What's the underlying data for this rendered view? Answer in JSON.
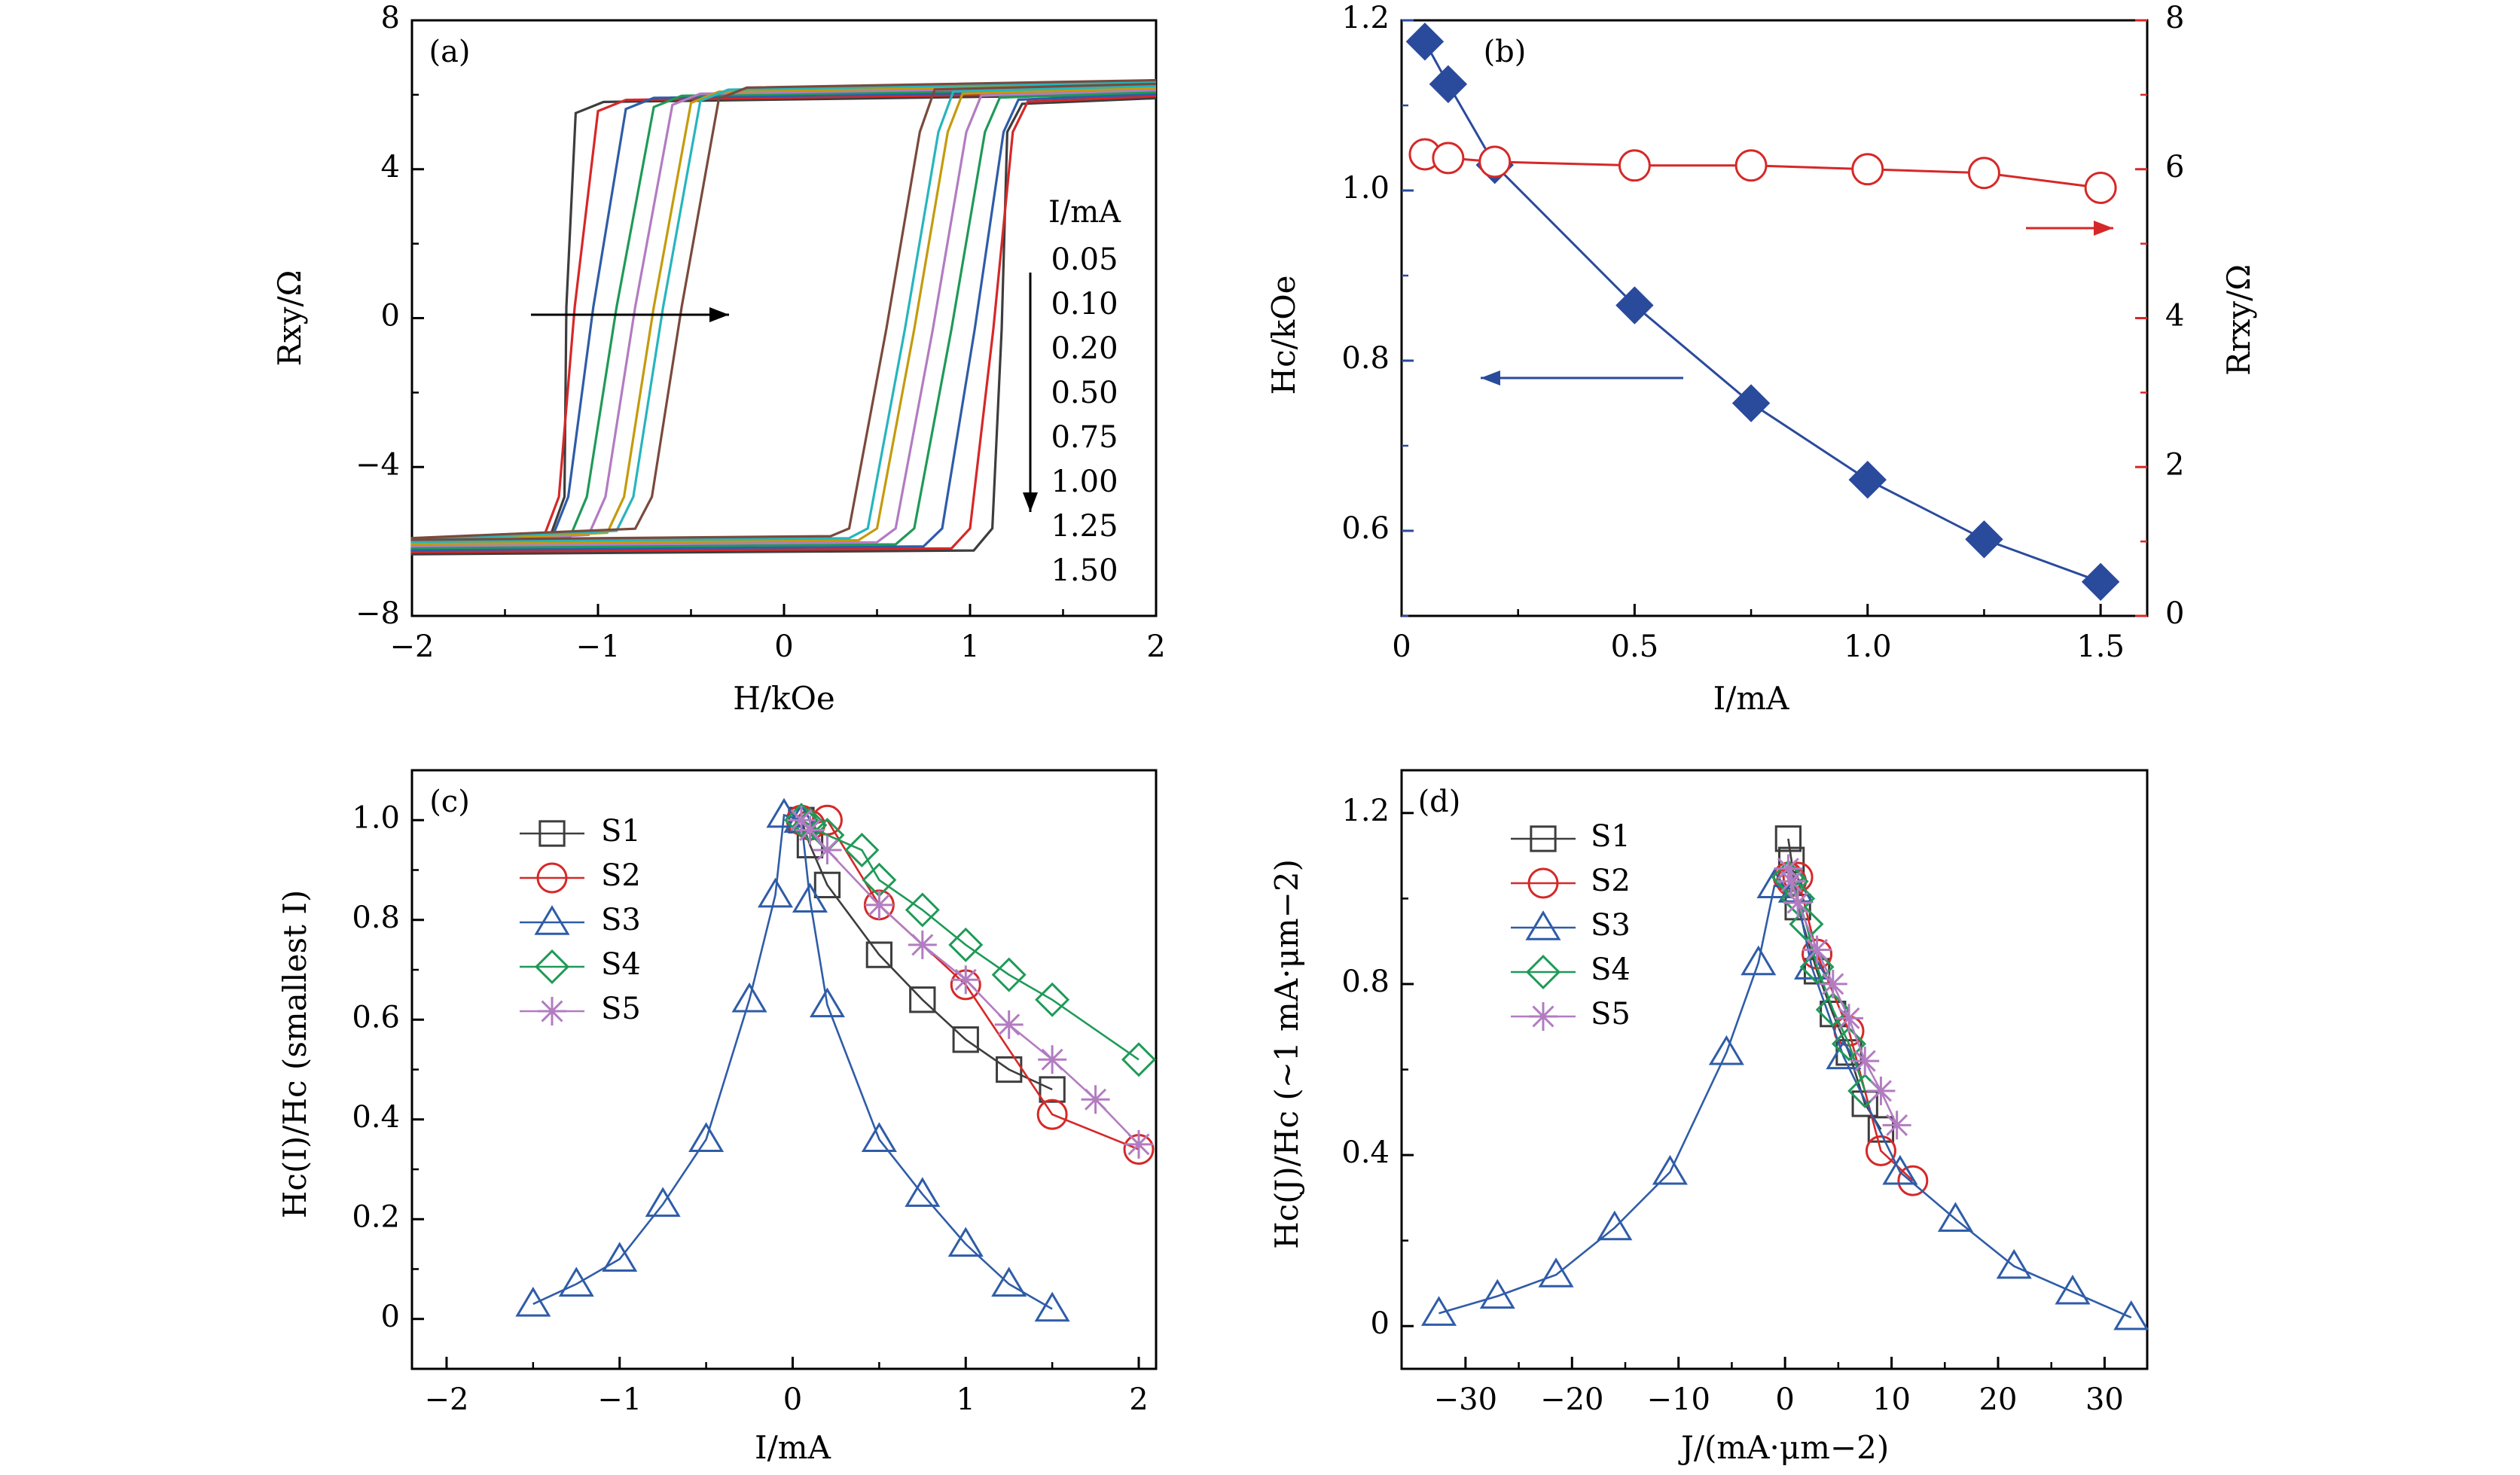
{
  "chart_data": [
    {
      "panel": "(a)",
      "type": "line",
      "xlabel": "H/kOe",
      "ylabel": "Rxy/Ω",
      "xlim": [
        -2,
        2
      ],
      "ylim": [
        -8,
        8
      ],
      "xticks": [
        "−2",
        "−1",
        "0",
        "1",
        "2"
      ],
      "yticks": [
        "8",
        "4",
        "0",
        "−4",
        "−8"
      ],
      "legend_title": "I/mA",
      "saturation_high": 6.0,
      "saturation_low": -6.0,
      "series": [
        {
          "name": "0.05",
          "color": "#3d3d3d",
          "down_switch": [
            -1.22,
            -1.12
          ],
          "up_switch": [
            1.12,
            1.22
          ]
        },
        {
          "name": "0.10",
          "color": "#d62828",
          "down_switch": [
            -1.25,
            -1.0
          ],
          "up_switch": [
            1.0,
            1.25
          ]
        },
        {
          "name": "0.20",
          "color": "#2f5ca8",
          "down_switch": [
            -1.2,
            -0.85
          ],
          "up_switch": [
            0.85,
            1.2
          ]
        },
        {
          "name": "0.50",
          "color": "#1f9a57",
          "down_switch": [
            -1.1,
            -0.7
          ],
          "up_switch": [
            0.7,
            1.1
          ]
        },
        {
          "name": "0.75",
          "color": "#b27cc1",
          "down_switch": [
            -1.0,
            -0.6
          ],
          "up_switch": [
            0.6,
            1.0
          ]
        },
        {
          "name": "1.00",
          "color": "#c49b0c",
          "down_switch": [
            -0.9,
            -0.5
          ],
          "up_switch": [
            0.5,
            0.9
          ]
        },
        {
          "name": "1.25",
          "color": "#27b5bd",
          "down_switch": [
            -0.85,
            -0.45
          ],
          "up_switch": [
            0.45,
            0.85
          ]
        },
        {
          "name": "1.50",
          "color": "#7a4a3c",
          "down_switch": [
            -0.75,
            -0.35
          ],
          "up_switch": [
            0.35,
            0.75
          ]
        }
      ]
    },
    {
      "panel": "(b)",
      "type": "scatter",
      "xlabel": "I/mA",
      "ylabel_left": "Hc/kOe",
      "ylabel_right": "Rrxy/Ω",
      "xlim": [
        0,
        1.6
      ],
      "ylim_left": [
        0.5,
        1.2
      ],
      "ylim_right": [
        0,
        8
      ],
      "xticks": [
        "0",
        "0.5",
        "1.0",
        "1.5"
      ],
      "yticks_left": [
        "1.2",
        "1.0",
        "0.8",
        "0.6"
      ],
      "yticks_right": [
        "8",
        "6",
        "4",
        "2",
        "0"
      ],
      "left_color": "#2a4a9c",
      "right_color": "#d62828",
      "x": [
        0.05,
        0.1,
        0.2,
        0.5,
        0.75,
        1.0,
        1.25,
        1.5
      ],
      "series": [
        {
          "axis": "left",
          "values": [
            1.175,
            1.125,
            1.03,
            0.865,
            0.75,
            0.66,
            0.59,
            0.54
          ]
        },
        {
          "axis": "right",
          "values": [
            6.2,
            6.15,
            6.1,
            6.05,
            6.05,
            6.0,
            5.95,
            5.75
          ]
        }
      ]
    },
    {
      "panel": "(c)",
      "type": "line",
      "xlabel": "I/mA",
      "ylabel": "Hc(I)/Hc (smallest I)",
      "xlim": [
        -2.2,
        2.1
      ],
      "ylim": [
        -0.1,
        1.1
      ],
      "xticks": [
        "−2",
        "−1",
        "0",
        "1",
        "2"
      ],
      "yticks": [
        "1.0",
        "0.8",
        "0.6",
        "0.4",
        "0.2",
        "0"
      ],
      "series": [
        {
          "name": "S1",
          "color": "#3d3d3d",
          "marker": "square",
          "x": [
            0.05,
            0.1,
            0.2,
            0.5,
            0.75,
            1.0,
            1.25,
            1.5
          ],
          "values": [
            1.0,
            0.95,
            0.87,
            0.73,
            0.64,
            0.56,
            0.5,
            0.46
          ]
        },
        {
          "name": "S2",
          "color": "#d62828",
          "marker": "circle",
          "x": [
            0.05,
            0.1,
            0.2,
            0.5,
            1.0,
            1.5,
            2.0
          ],
          "values": [
            1.0,
            0.99,
            1.0,
            0.83,
            0.67,
            0.41,
            0.34
          ]
        },
        {
          "name": "S3",
          "color": "#2f5ca8",
          "marker": "triangle",
          "x": [
            -1.5,
            -1.25,
            -1.0,
            -0.75,
            -0.5,
            -0.25,
            -0.1,
            -0.05,
            0.05,
            0.1,
            0.2,
            0.5,
            0.75,
            1.0,
            1.25,
            1.5
          ],
          "values": [
            0.03,
            0.07,
            0.12,
            0.23,
            0.36,
            0.64,
            0.85,
            1.01,
            1.0,
            0.84,
            0.63,
            0.36,
            0.25,
            0.15,
            0.07,
            0.02
          ]
        },
        {
          "name": "S4",
          "color": "#1f9a57",
          "marker": "diamond",
          "x": [
            0.05,
            0.1,
            0.2,
            0.4,
            0.5,
            0.75,
            1.0,
            1.25,
            1.5,
            2.0
          ],
          "values": [
            1.0,
            0.99,
            0.97,
            0.94,
            0.88,
            0.82,
            0.75,
            0.69,
            0.64,
            0.52
          ]
        },
        {
          "name": "S5",
          "color": "#b27cc1",
          "marker": "star",
          "x": [
            0.05,
            0.1,
            0.2,
            0.5,
            0.75,
            1.0,
            1.25,
            1.5,
            1.75,
            2.0
          ],
          "values": [
            1.0,
            0.98,
            0.94,
            0.83,
            0.75,
            0.68,
            0.59,
            0.52,
            0.44,
            0.35
          ]
        }
      ]
    },
    {
      "panel": "(d)",
      "type": "line",
      "xlabel": "J/(mA·μm−2)",
      "ylabel": "Hc(J)/Hc (~1 mA·μm−2)",
      "xlim": [
        -36,
        34
      ],
      "ylim": [
        -0.1,
        1.3
      ],
      "xticks": [
        "−30",
        "−20",
        "−10",
        "0",
        "10",
        "20",
        "30"
      ],
      "yticks": [
        "1.2",
        "0.8",
        "0.4",
        "0"
      ],
      "series": [
        {
          "name": "S1",
          "color": "#3d3d3d",
          "marker": "square",
          "x": [
            0.3,
            0.6,
            1.2,
            3.0,
            4.5,
            6.0,
            7.5,
            9.0
          ],
          "values": [
            1.14,
            1.09,
            0.98,
            0.83,
            0.73,
            0.64,
            0.52,
            0.46
          ]
        },
        {
          "name": "S2",
          "color": "#d62828",
          "marker": "circle",
          "x": [
            0.3,
            0.6,
            1.2,
            3.0,
            6.0,
            9.0,
            12.0
          ],
          "values": [
            1.05,
            1.04,
            1.05,
            0.87,
            0.69,
            0.41,
            0.34
          ]
        },
        {
          "name": "S3",
          "color": "#2f5ca8",
          "marker": "triangle",
          "x": [
            -32.5,
            -27.0,
            -21.5,
            -16.0,
            -10.8,
            -5.5,
            -2.5,
            -1.0,
            1.0,
            2.5,
            5.5,
            10.8,
            16.0,
            21.5,
            27.0,
            32.5
          ],
          "values": [
            0.03,
            0.07,
            0.12,
            0.23,
            0.36,
            0.64,
            0.85,
            1.03,
            1.02,
            0.84,
            0.63,
            0.36,
            0.25,
            0.14,
            0.08,
            0.02
          ]
        },
        {
          "name": "S4",
          "color": "#1f9a57",
          "marker": "diamond",
          "x": [
            0.3,
            0.6,
            1.2,
            2.0,
            3.0,
            4.5,
            6.0,
            7.5
          ],
          "values": [
            1.05,
            1.04,
            1.0,
            0.94,
            0.84,
            0.74,
            0.66,
            0.55
          ]
        },
        {
          "name": "S5",
          "color": "#b27cc1",
          "marker": "star",
          "x": [
            0.3,
            0.6,
            1.2,
            3.0,
            4.5,
            6.0,
            7.5,
            9.0,
            10.5
          ],
          "values": [
            1.07,
            1.04,
            0.99,
            0.88,
            0.8,
            0.72,
            0.62,
            0.55,
            0.47
          ]
        }
      ]
    }
  ]
}
